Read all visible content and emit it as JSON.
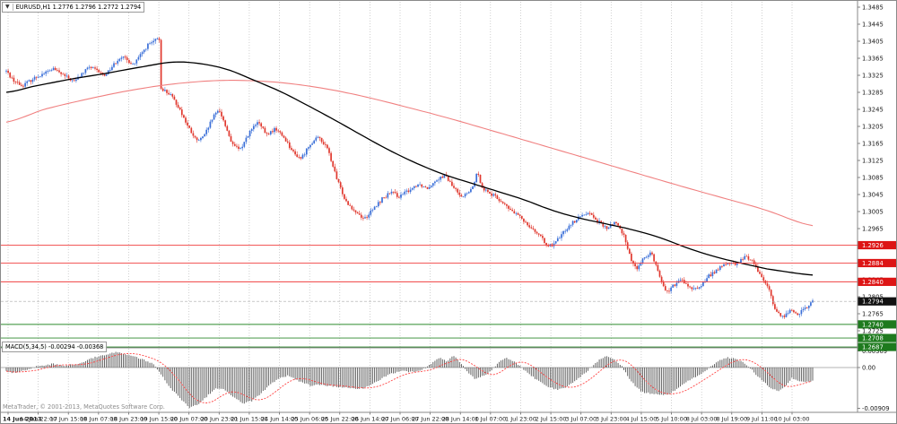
{
  "header": {
    "symbol": "EURUSD,H1",
    "title_line": "EURUSD,H1  1.2776 1.2796 1.2772 1.2794"
  },
  "footer": {
    "copyright": "MetaTrader, © 2001-2013, MetaQuotes Software Corp."
  },
  "colors": {
    "up": "#3a6fd8",
    "down": "#e0382e",
    "ma_fast": "#000000",
    "ma_slow": "#f08080",
    "resistance_line": "#f04040",
    "support_line": "#2d8a2d",
    "box_red": "#dd1515",
    "box_green": "#1e7a1e",
    "box_black": "#111111",
    "grid": "#bdbdbd",
    "histogram": "#555555",
    "signal": "#ff4444",
    "axis_text": "#1a1a1a",
    "border": "#8a8a8a",
    "bid_line": "#aaaaaa"
  },
  "chart_data": {
    "type": "candlestick",
    "symbol": "EURUSD",
    "timeframe": "H1",
    "title": "EURUSD,H1",
    "current_bar": {
      "open": 1.2776,
      "high": 1.2796,
      "low": 1.2772,
      "close": 1.2794
    },
    "y_axis": {
      "min": 1.2687,
      "max": 1.3485,
      "ticks": [
        "1.3485",
        "1.3445",
        "1.3405",
        "1.3365",
        "1.3325",
        "1.3285",
        "1.3245",
        "1.3205",
        "1.3165",
        "1.3125",
        "1.3085",
        "1.3045",
        "1.3005",
        "1.2965",
        "1.2925",
        "1.2885",
        "1.2845",
        "1.2805",
        "1.2765",
        "1.2725"
      ]
    },
    "x_axis": {
      "labels": [
        "14 Jun 2013",
        "14 Jun 22:00",
        "17 Jun 15:00",
        "18 Jun 07:00",
        "18 Jun 23:00",
        "19 Jun 15:00",
        "20 Jun 07:00",
        "20 Jun 23:00",
        "21 Jun 15:00",
        "24 Jun 14:00",
        "25 Jun 06:00",
        "25 Jun 22:00",
        "26 Jun 14:00",
        "27 Jun 06:00",
        "27 Jun 22:00",
        "28 Jun 14:00",
        "1 Jul 07:00",
        "1 Jul 23:00",
        "2 Jul 15:00",
        "3 Jul 07:00",
        "3 Jul 23:00",
        "4 Jul 15:00",
        "5 Jul 10:00",
        "8 Jul 03:00",
        "8 Jul 19:00",
        "9 Jul 11:00",
        "10 Jul 03:00"
      ]
    },
    "levels": {
      "resistance": [
        {
          "value": 1.2926,
          "label": "1.2926"
        },
        {
          "value": 1.2884,
          "label": "1.2884"
        },
        {
          "value": 1.284,
          "label": "1.2840"
        }
      ],
      "support": [
        {
          "value": 1.274,
          "label": "1.2740"
        },
        {
          "value": 1.2708,
          "label": "1.2708"
        },
        {
          "value": 1.2687,
          "label": "1.2687"
        }
      ],
      "bid": {
        "value": 1.2794,
        "label": "1.2794"
      }
    },
    "close_path": [
      [
        0.0,
        1.3335
      ],
      [
        0.008,
        1.3315
      ],
      [
        0.019,
        1.33
      ],
      [
        0.036,
        1.332
      ],
      [
        0.058,
        1.334
      ],
      [
        0.084,
        1.331
      ],
      [
        0.103,
        1.3345
      ],
      [
        0.122,
        1.3325
      ],
      [
        0.142,
        1.337
      ],
      [
        0.158,
        1.335
      ],
      [
        0.175,
        1.3395
      ],
      [
        0.186,
        1.3408
      ],
      [
        0.19,
        1.341
      ],
      [
        0.192,
        1.3295
      ],
      [
        0.203,
        1.328
      ],
      [
        0.214,
        1.325
      ],
      [
        0.225,
        1.3205
      ],
      [
        0.236,
        1.317
      ],
      [
        0.245,
        1.318
      ],
      [
        0.256,
        1.3225
      ],
      [
        0.264,
        1.3245
      ],
      [
        0.272,
        1.3205
      ],
      [
        0.281,
        1.316
      ],
      [
        0.29,
        1.315
      ],
      [
        0.301,
        1.319
      ],
      [
        0.312,
        1.3215
      ],
      [
        0.323,
        1.3185
      ],
      [
        0.334,
        1.32
      ],
      [
        0.346,
        1.3175
      ],
      [
        0.357,
        1.314
      ],
      [
        0.366,
        1.313
      ],
      [
        0.377,
        1.3165
      ],
      [
        0.388,
        1.318
      ],
      [
        0.399,
        1.315
      ],
      [
        0.41,
        1.308
      ],
      [
        0.421,
        1.303
      ],
      [
        0.433,
        1.3005
      ],
      [
        0.444,
        1.2988
      ],
      [
        0.455,
        1.301
      ],
      [
        0.466,
        1.3035
      ],
      [
        0.477,
        1.305
      ],
      [
        0.488,
        1.304
      ],
      [
        0.499,
        1.3055
      ],
      [
        0.511,
        1.307
      ],
      [
        0.522,
        1.306
      ],
      [
        0.533,
        1.308
      ],
      [
        0.544,
        1.309
      ],
      [
        0.555,
        1.306
      ],
      [
        0.566,
        1.304
      ],
      [
        0.577,
        1.3055
      ],
      [
        0.584,
        1.3095
      ],
      [
        0.591,
        1.306
      ],
      [
        0.602,
        1.3045
      ],
      [
        0.613,
        1.303
      ],
      [
        0.624,
        1.301
      ],
      [
        0.635,
        1.2995
      ],
      [
        0.647,
        1.2975
      ],
      [
        0.658,
        1.2955
      ],
      [
        0.669,
        1.293
      ],
      [
        0.677,
        1.2922
      ],
      [
        0.688,
        1.295
      ],
      [
        0.699,
        1.2975
      ],
      [
        0.71,
        1.299
      ],
      [
        0.721,
        1.3005
      ],
      [
        0.732,
        1.2985
      ],
      [
        0.744,
        1.2965
      ],
      [
        0.755,
        1.298
      ],
      [
        0.766,
        1.295
      ],
      [
        0.775,
        1.289
      ],
      [
        0.783,
        1.287
      ],
      [
        0.792,
        1.29
      ],
      [
        0.8,
        1.291
      ],
      [
        0.809,
        1.286
      ],
      [
        0.818,
        1.2815
      ],
      [
        0.827,
        1.283
      ],
      [
        0.838,
        1.2845
      ],
      [
        0.85,
        1.282
      ],
      [
        0.861,
        1.283
      ],
      [
        0.872,
        1.2855
      ],
      [
        0.883,
        1.287
      ],
      [
        0.894,
        1.2885
      ],
      [
        0.905,
        1.288
      ],
      [
        0.917,
        1.29
      ],
      [
        0.925,
        1.289
      ],
      [
        0.934,
        1.286
      ],
      [
        0.941,
        1.284
      ],
      [
        0.948,
        1.281
      ],
      [
        0.954,
        1.277
      ],
      [
        0.963,
        1.2758
      ],
      [
        0.972,
        1.2772
      ],
      [
        0.981,
        1.2765
      ],
      [
        0.99,
        1.2775
      ],
      [
        1.0,
        1.2794
      ]
    ],
    "ma_fast_black": [
      [
        0.0,
        1.3285
      ],
      [
        0.036,
        1.33
      ],
      [
        0.08,
        1.3316
      ],
      [
        0.125,
        1.333
      ],
      [
        0.169,
        1.3345
      ],
      [
        0.208,
        1.3356
      ],
      [
        0.242,
        1.3352
      ],
      [
        0.275,
        1.3338
      ],
      [
        0.309,
        1.3312
      ],
      [
        0.342,
        1.3285
      ],
      [
        0.376,
        1.3252
      ],
      [
        0.409,
        1.3218
      ],
      [
        0.443,
        1.3182
      ],
      [
        0.476,
        1.3148
      ],
      [
        0.509,
        1.3118
      ],
      [
        0.543,
        1.3092
      ],
      [
        0.576,
        1.3072
      ],
      [
        0.61,
        1.3052
      ],
      [
        0.643,
        1.3032
      ],
      [
        0.677,
        1.3008
      ],
      [
        0.71,
        1.299
      ],
      [
        0.744,
        1.2976
      ],
      [
        0.777,
        1.2962
      ],
      [
        0.81,
        1.2944
      ],
      [
        0.844,
        1.292
      ],
      [
        0.877,
        1.29
      ],
      [
        0.911,
        1.2884
      ],
      [
        0.944,
        1.287
      ],
      [
        1.0,
        1.2856
      ]
    ],
    "ma_slow_red": [
      [
        0.0,
        1.3215
      ],
      [
        0.047,
        1.3245
      ],
      [
        0.103,
        1.327
      ],
      [
        0.158,
        1.3291
      ],
      [
        0.214,
        1.3306
      ],
      [
        0.27,
        1.3313
      ],
      [
        0.326,
        1.331
      ],
      [
        0.381,
        1.3298
      ],
      [
        0.437,
        1.3278
      ],
      [
        0.493,
        1.3252
      ],
      [
        0.549,
        1.3224
      ],
      [
        0.604,
        1.3194
      ],
      [
        0.66,
        1.3163
      ],
      [
        0.716,
        1.3132
      ],
      [
        0.771,
        1.3101
      ],
      [
        0.827,
        1.307
      ],
      [
        0.883,
        1.304
      ],
      [
        0.939,
        1.301
      ],
      [
        1.0,
        1.2972
      ]
    ],
    "indicator": {
      "name": "MACD(5,34,5)",
      "label": "MACD(5,34,5) -0.00294 -0.00368",
      "main_value": -0.00294,
      "signal_value": -0.00368,
      "scale_labels": [
        "0.00369",
        "0.00",
        "-0.00909"
      ],
      "scale": {
        "max": 0.00369,
        "zero": 0.0,
        "min": -0.00909
      },
      "histogram": [
        [
          0.0,
          -0.0008
        ],
        [
          0.008,
          -0.0012
        ],
        [
          0.025,
          -0.0005
        ],
        [
          0.041,
          0.0004
        ],
        [
          0.058,
          0.0008
        ],
        [
          0.075,
          0.0004
        ],
        [
          0.091,
          0.001
        ],
        [
          0.108,
          0.0022
        ],
        [
          0.125,
          0.003
        ],
        [
          0.136,
          0.0035
        ],
        [
          0.153,
          0.0028
        ],
        [
          0.169,
          0.0018
        ],
        [
          0.183,
          0.0008
        ],
        [
          0.192,
          -0.0015
        ],
        [
          0.203,
          -0.0045
        ],
        [
          0.214,
          -0.0065
        ],
        [
          0.227,
          -0.009
        ],
        [
          0.239,
          -0.0082
        ],
        [
          0.25,
          -0.0062
        ],
        [
          0.261,
          -0.0046
        ],
        [
          0.272,
          -0.005
        ],
        [
          0.283,
          -0.0068
        ],
        [
          0.294,
          -0.008
        ],
        [
          0.305,
          -0.0074
        ],
        [
          0.317,
          -0.0056
        ],
        [
          0.328,
          -0.0036
        ],
        [
          0.339,
          -0.0024
        ],
        [
          0.35,
          -0.0018
        ],
        [
          0.363,
          -0.003
        ],
        [
          0.377,
          -0.004
        ],
        [
          0.39,
          -0.0038
        ],
        [
          0.404,
          -0.0042
        ],
        [
          0.417,
          -0.0044
        ],
        [
          0.43,
          -0.0047
        ],
        [
          0.444,
          -0.0046
        ],
        [
          0.455,
          -0.0036
        ],
        [
          0.466,
          -0.0024
        ],
        [
          0.477,
          -0.0014
        ],
        [
          0.491,
          -0.0008
        ],
        [
          0.504,
          -0.001
        ],
        [
          0.517,
          -0.0004
        ],
        [
          0.528,
          0.001
        ],
        [
          0.537,
          0.0022
        ],
        [
          0.546,
          0.0014
        ],
        [
          0.555,
          0.0026
        ],
        [
          0.564,
          0.001
        ],
        [
          0.573,
          -0.0012
        ],
        [
          0.582,
          -0.0026
        ],
        [
          0.593,
          -0.0018
        ],
        [
          0.602,
          -0.0006
        ],
        [
          0.611,
          0.0012
        ],
        [
          0.62,
          0.0022
        ],
        [
          0.629,
          0.0014
        ],
        [
          0.638,
          0.0002
        ],
        [
          0.649,
          -0.0016
        ],
        [
          0.66,
          -0.003
        ],
        [
          0.673,
          -0.0044
        ],
        [
          0.684,
          -0.005
        ],
        [
          0.696,
          -0.0042
        ],
        [
          0.707,
          -0.0028
        ],
        [
          0.718,
          -0.0012
        ],
        [
          0.727,
          0.0004
        ],
        [
          0.736,
          0.0018
        ],
        [
          0.745,
          0.0026
        ],
        [
          0.754,
          0.0018
        ],
        [
          0.763,
          0.0004
        ],
        [
          0.771,
          -0.002
        ],
        [
          0.78,
          -0.0042
        ],
        [
          0.789,
          -0.0055
        ],
        [
          0.8,
          -0.0058
        ],
        [
          0.812,
          -0.0062
        ],
        [
          0.823,
          -0.0058
        ],
        [
          0.834,
          -0.0044
        ],
        [
          0.845,
          -0.003
        ],
        [
          0.856,
          -0.002
        ],
        [
          0.867,
          -0.0008
        ],
        [
          0.876,
          0.0006
        ],
        [
          0.885,
          0.0016
        ],
        [
          0.894,
          0.0022
        ],
        [
          0.903,
          0.002
        ],
        [
          0.912,
          0.0014
        ],
        [
          0.921,
          0.0002
        ],
        [
          0.93,
          -0.0016
        ],
        [
          0.939,
          -0.0032
        ],
        [
          0.948,
          -0.0046
        ],
        [
          0.957,
          -0.0052
        ],
        [
          0.966,
          -0.0042
        ],
        [
          0.974,
          -0.0024
        ],
        [
          0.983,
          -0.003
        ],
        [
          0.992,
          -0.0032
        ],
        [
          1.0,
          -0.0029
        ]
      ]
    }
  }
}
